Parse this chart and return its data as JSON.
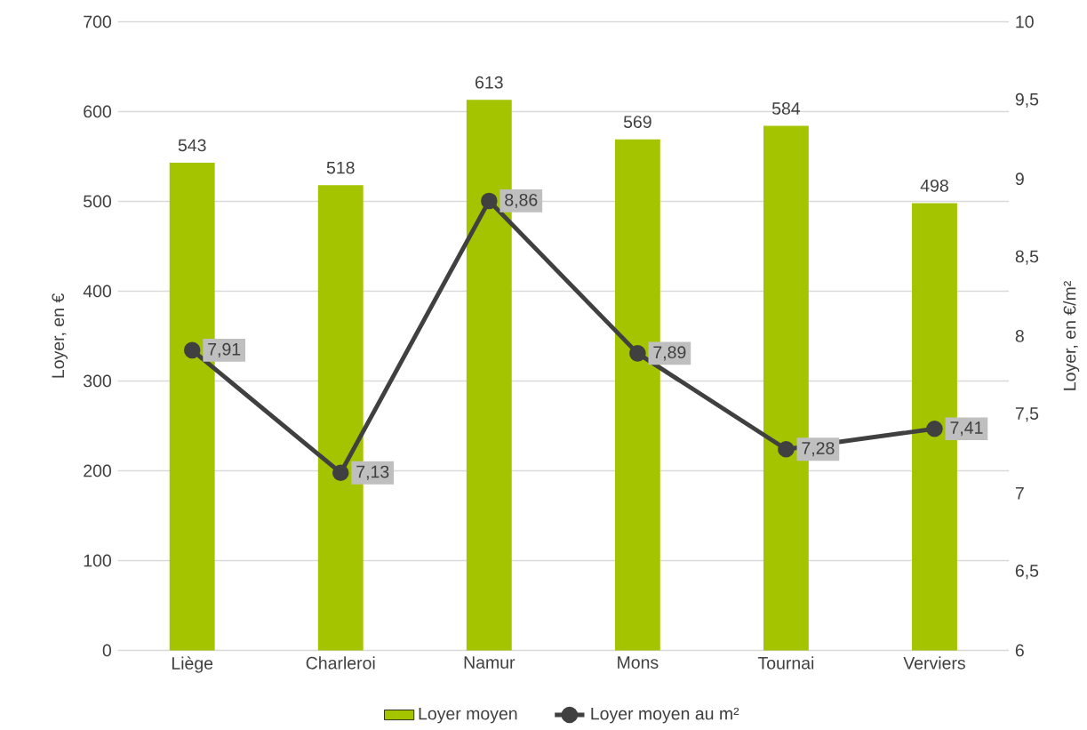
{
  "chart_data": {
    "type": "bar",
    "categories": [
      "Liège",
      "Charleroi",
      "Namur",
      "Mons",
      "Tournai",
      "Verviers"
    ],
    "ylabel": "Loyer, en €",
    "y2label": "Loyer, en €/m²",
    "ylim": [
      0,
      700
    ],
    "yticks": [
      0,
      100,
      200,
      300,
      400,
      500,
      600,
      700
    ],
    "y2lim": [
      6,
      10
    ],
    "y2ticks": [
      6,
      {
        "value": 6.5,
        "label": "6,5"
      },
      7,
      {
        "value": 7.5,
        "label": "7,5"
      },
      8,
      {
        "value": 8.5,
        "label": "8,5"
      },
      9,
      {
        "value": 9.5,
        "label": "9,5"
      },
      10
    ],
    "grid": "y",
    "legend": "bottom",
    "series": [
      {
        "name": "Loyer moyen",
        "color": "#a5c400",
        "values": [
          543,
          518,
          613,
          569,
          584,
          498
        ],
        "value_labels": [
          "543",
          "518",
          "613",
          "569",
          "584",
          "498"
        ]
      },
      {
        "name": "Loyer moyen au m²",
        "type": "line",
        "axis": "y2",
        "color": "#404040",
        "marker": "circle",
        "line_style": "solid",
        "values": [
          7.91,
          7.13,
          8.86,
          7.89,
          7.28,
          7.41
        ],
        "value_labels": [
          "7,91",
          "7,13",
          "8,86",
          "7,89",
          "7,28",
          "7,41"
        ]
      }
    ]
  }
}
